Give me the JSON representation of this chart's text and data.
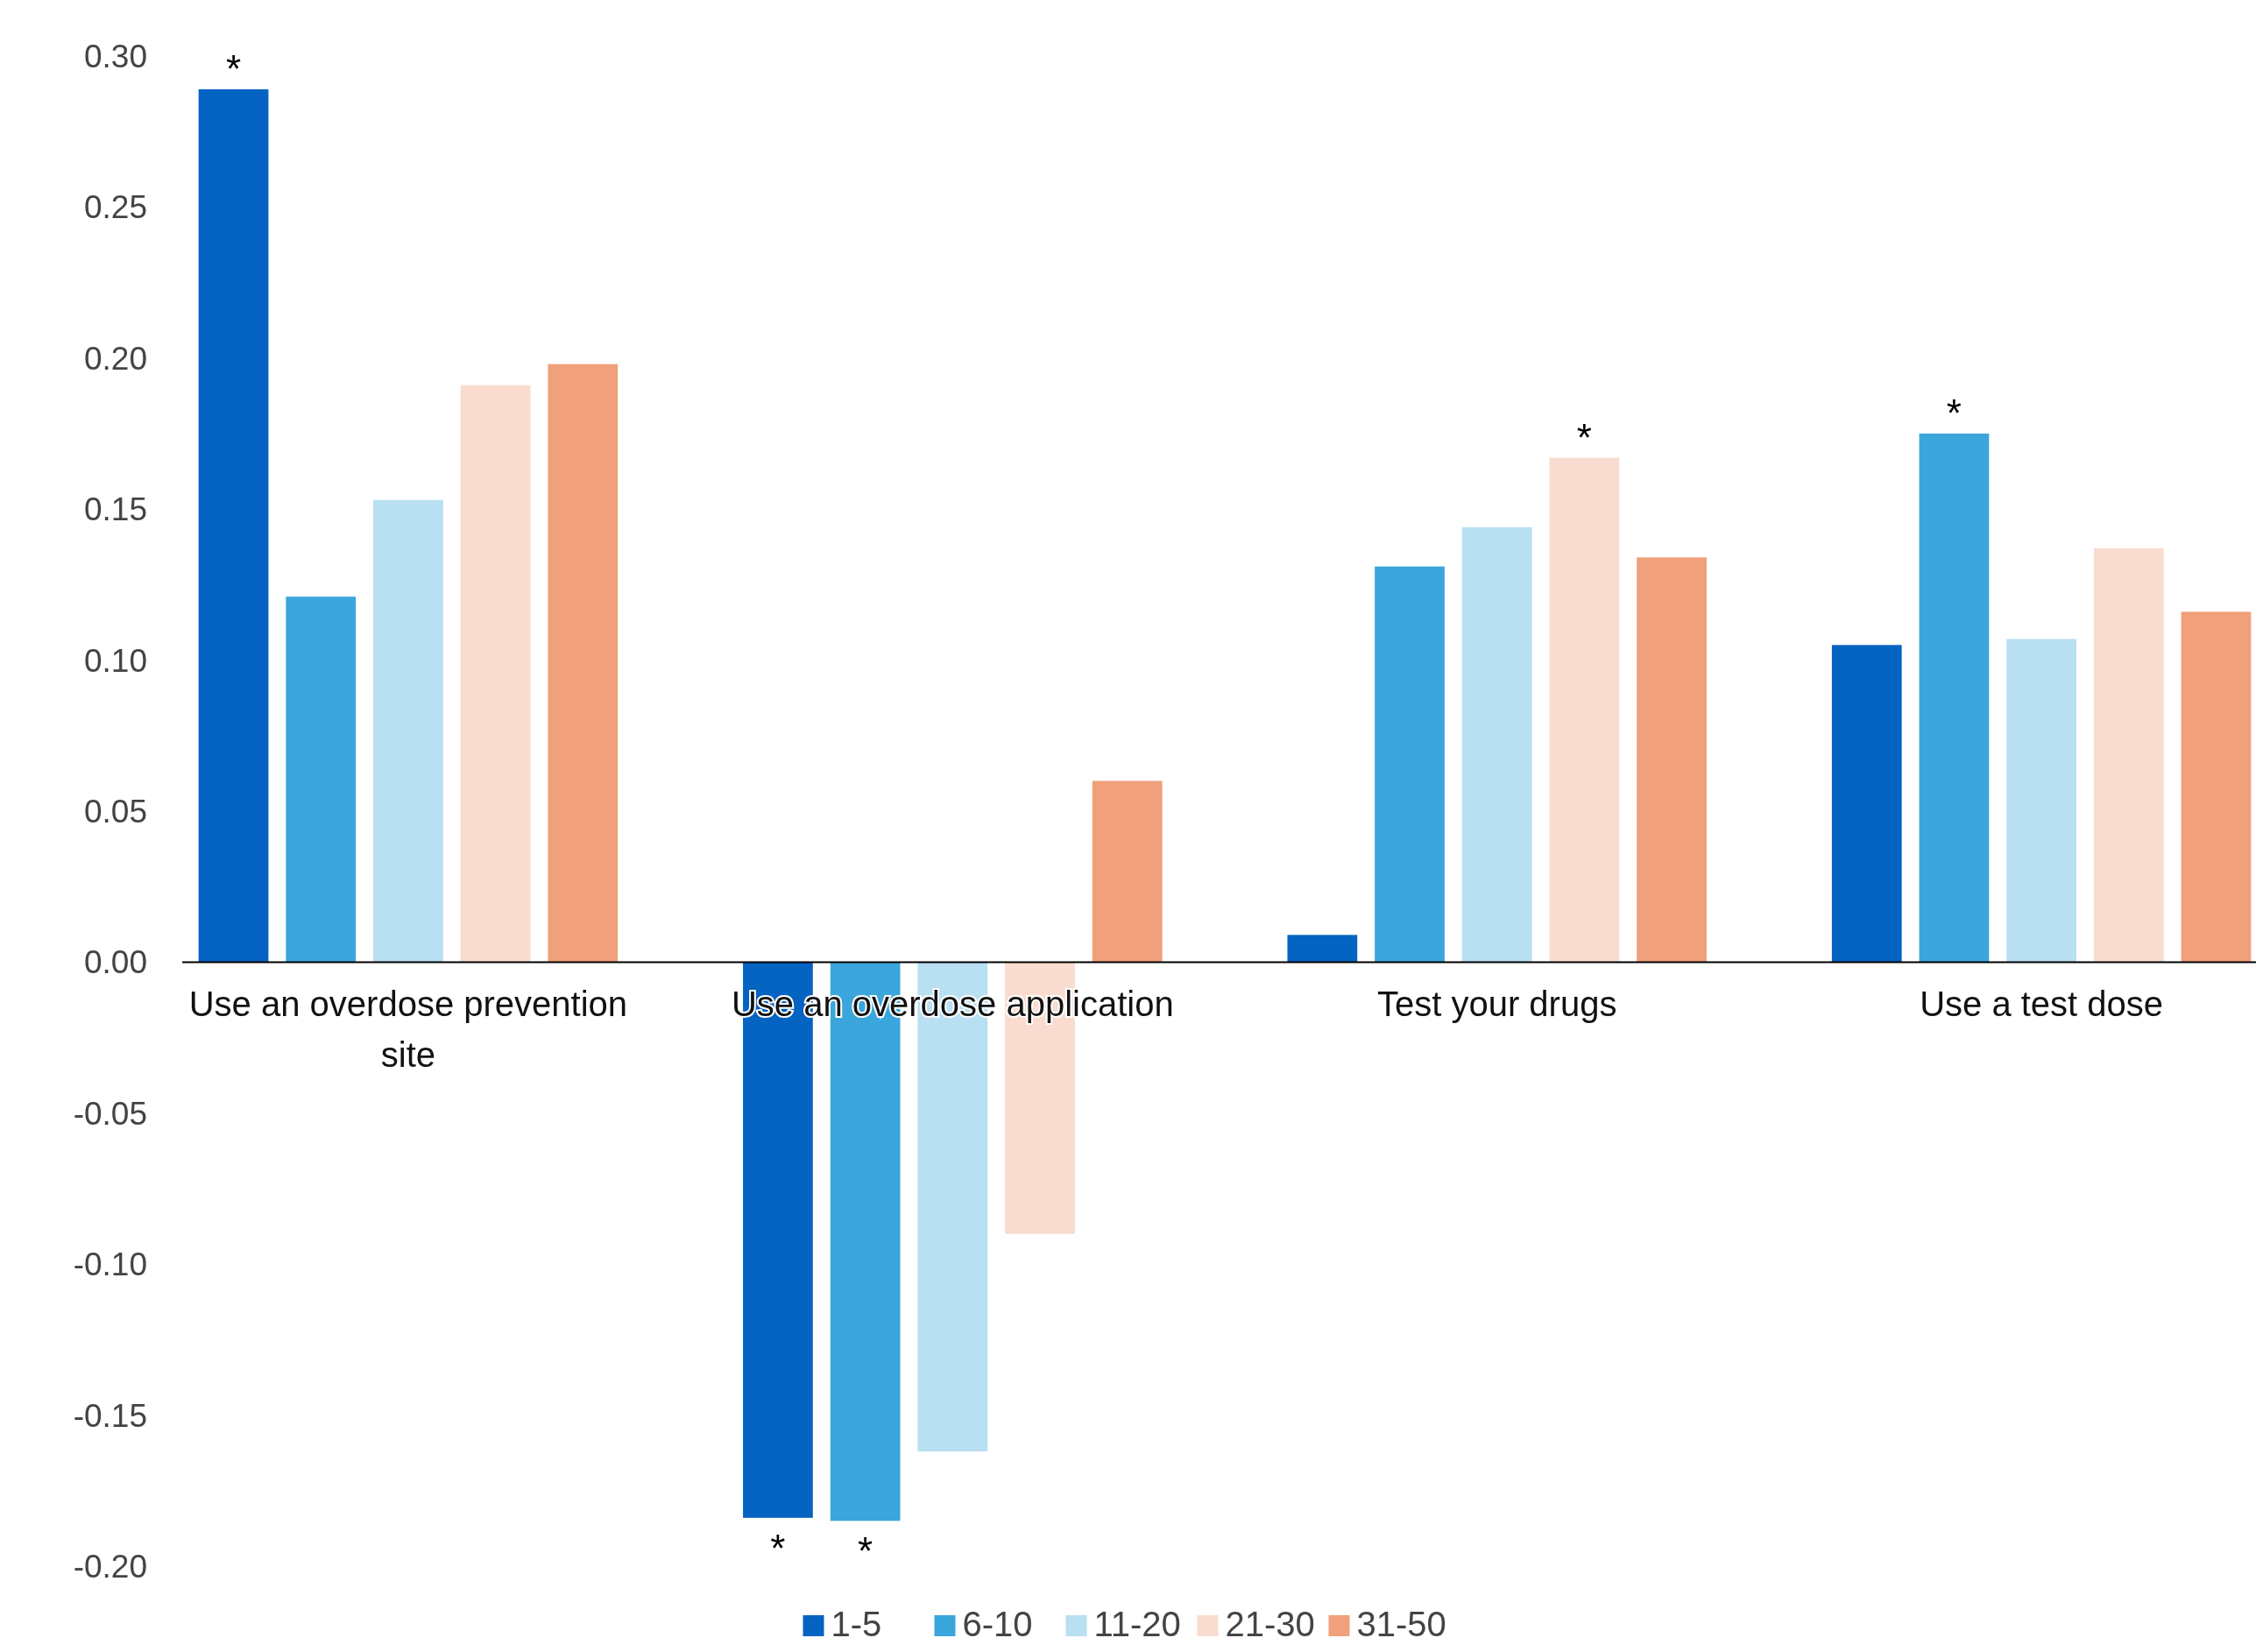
{
  "chart_data": {
    "type": "bar",
    "categories": [
      "Use an overdose prevention site",
      "Use an overdose application",
      "Test your drugs",
      "Use a test dose"
    ],
    "series": [
      {
        "name": "1-5",
        "color": "#0563c1",
        "values": [
          0.289,
          -0.184,
          0.009,
          0.105
        ],
        "value_labels": [
          "*",
          "*",
          null,
          null
        ]
      },
      {
        "name": "6-10",
        "color": "#3aa6dc",
        "values": [
          0.121,
          -0.185,
          0.131,
          0.175
        ],
        "value_labels": [
          null,
          "*",
          null,
          "*"
        ]
      },
      {
        "name": "11-20",
        "color": "#b8dff2",
        "values": [
          0.153,
          -0.162,
          0.144,
          0.107
        ],
        "value_labels": [
          null,
          null,
          null,
          null
        ]
      },
      {
        "name": "21-30",
        "color": "#f9dccf",
        "values": [
          0.191,
          -0.09,
          0.167,
          0.137
        ],
        "value_labels": [
          null,
          null,
          "*",
          null
        ]
      },
      {
        "name": "31-50",
        "color": "#f0a07a",
        "values": [
          0.198,
          0.06,
          0.134,
          0.116
        ],
        "value_labels": [
          null,
          null,
          null,
          null
        ]
      }
    ],
    "ylim": [
      -0.2,
      0.3
    ],
    "yticks": [
      {
        "value": -0.2,
        "label": "-0.20"
      },
      {
        "value": -0.15,
        "label": "-0.15"
      },
      {
        "value": -0.1,
        "label": "-0.10"
      },
      {
        "value": -0.05,
        "label": "-0.05"
      },
      {
        "value": 0,
        "label": "0.00"
      },
      {
        "value": 0.05,
        "label": "0.05"
      },
      {
        "value": 0.1,
        "label": "0.10"
      },
      {
        "value": 0.15,
        "label": "0.15"
      },
      {
        "value": 0.2,
        "label": "0.20"
      },
      {
        "value": 0.25,
        "label": "0.25"
      },
      {
        "value": 0.3,
        "label": "0.30"
      }
    ],
    "grid": false,
    "legend": "bottom"
  }
}
